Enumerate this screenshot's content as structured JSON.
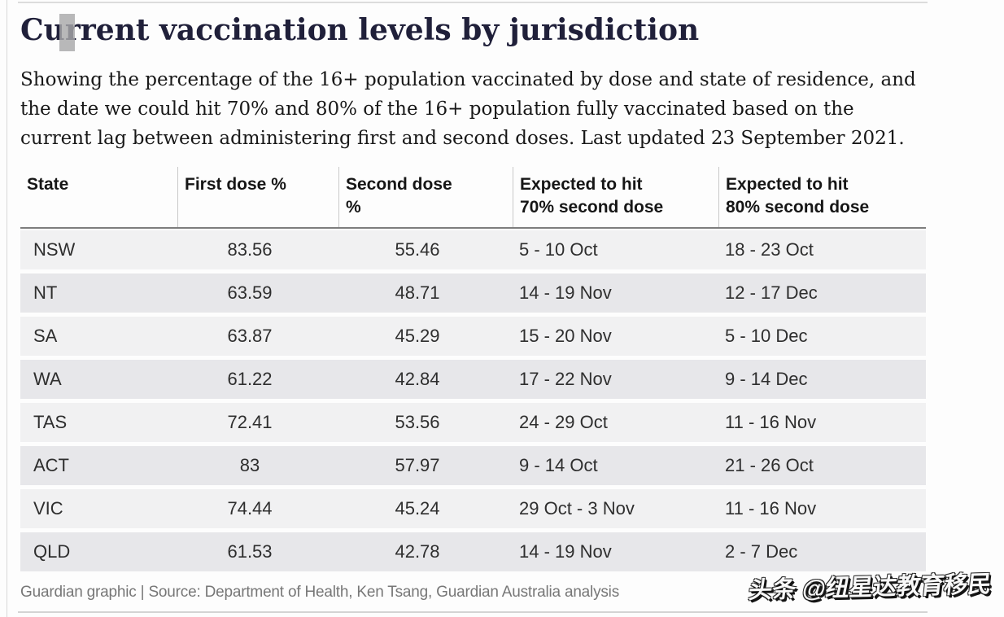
{
  "page": {
    "background": "#fdfdfd",
    "rule_color": "#dcdcdc",
    "row_light": "#f1f1f2",
    "row_dark": "#e7e7ea",
    "header_underline": "#7d7d7d",
    "title_color": "#20203a",
    "footer_color": "#777777"
  },
  "chart_data": {
    "type": "table",
    "title": "Current vaccination levels by jurisdiction",
    "subtitle": "Showing the percentage of the 16+ population vaccinated by dose and state of residence, and the date we could hit 70% and 80% of the 16+ population fully vaccinated based on the current lag between administering first and second doses. Last updated 23 September 2021.",
    "columns": [
      "State",
      "First dose %",
      "Second dose\n%",
      "Expected to hit\n70% second dose",
      "Expected to hit\n80% second dose"
    ],
    "col_align": [
      "left",
      "center",
      "center",
      "left",
      "left"
    ],
    "rows": [
      [
        "NSW",
        "83.56",
        "55.46",
        "5 - 10 Oct",
        "18 - 23 Oct"
      ],
      [
        "NT",
        "63.59",
        "48.71",
        "14 - 19 Nov",
        "12 - 17 Dec"
      ],
      [
        "SA",
        "63.87",
        "45.29",
        "15 - 20 Nov",
        "5 - 10 Dec"
      ],
      [
        "WA",
        "61.22",
        "42.84",
        "17 - 22 Nov",
        "9 - 14 Dec"
      ],
      [
        "TAS",
        "72.41",
        "53.56",
        "24 - 29 Oct",
        "11 - 16 Nov"
      ],
      [
        "ACT",
        "83",
        "57.97",
        "9 - 14 Oct",
        "21 - 26 Oct"
      ],
      [
        "VIC",
        "74.44",
        "45.24",
        "29 Oct - 3 Nov",
        "11 - 16 Nov"
      ],
      [
        "QLD",
        "61.53",
        "42.78",
        "14 - 19 Nov",
        "2 - 7 Dec"
      ]
    ],
    "source": "Guardian graphic | Source: Department of Health, Ken Tsang, Guardian Australia analysis",
    "legend_position": "none",
    "grid": "row-stripes"
  },
  "watermark": {
    "text": "头条 @纽星达教育移民"
  }
}
